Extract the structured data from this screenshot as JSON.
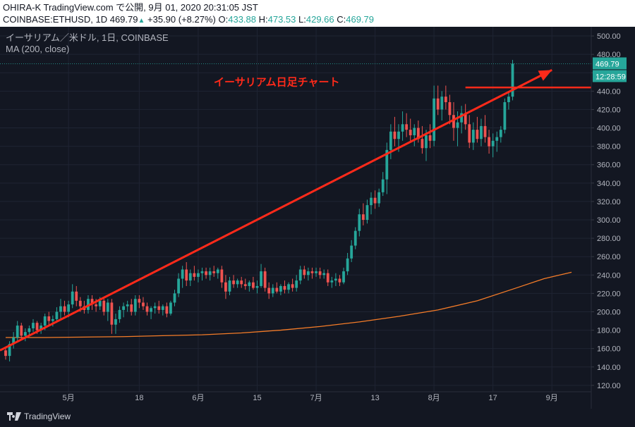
{
  "header": {
    "line1": "OHIRA-K TradingView.com で公開, 9月 01, 2020 20:31:05 JST",
    "symbol": "COINBASE:ETHUSD, 1D",
    "last": "469.79",
    "up_glyph": "▲",
    "change": "+35.90 (+8.27%)",
    "o_label": "O:",
    "o": "433.88",
    "h_label": "H:",
    "h": "473.53",
    "l_label": "L:",
    "l": "429.66",
    "c_label": "C:",
    "c": "469.79"
  },
  "legend": {
    "title": "イーサリアム／米ドル, 1日, COINBASE",
    "ma": "MA (200, close)"
  },
  "annotation": "イーサリアム日足チャート",
  "price_label": "469.79",
  "countdown_label": "12:28:59",
  "brand": "TradingView",
  "colors": {
    "background": "#131722",
    "up": "#26a69a",
    "down": "#ef5350",
    "ma": "#f57c28",
    "annotation": "#ff2a1a"
  },
  "chart_data": {
    "type": "candlestick",
    "x_tick_labels": [
      "5月",
      "18",
      "6月",
      "15",
      "7月",
      "13",
      "8月",
      "17",
      "9月"
    ],
    "y_tick_labels": [
      "120.00",
      "140.00",
      "160.00",
      "180.00",
      "200.00",
      "220.00",
      "240.00",
      "260.00",
      "280.00",
      "300.00",
      "320.00",
      "340.00",
      "360.00",
      "380.00",
      "400.00",
      "420.00",
      "440.00",
      "460.00",
      "480.00",
      "500.00"
    ],
    "ylim": [
      113,
      510
    ],
    "grid": true,
    "candles": [
      [
        158,
        162,
        148,
        152
      ],
      [
        152,
        168,
        146,
        165
      ],
      [
        165,
        178,
        160,
        172
      ],
      [
        172,
        190,
        168,
        185
      ],
      [
        185,
        188,
        170,
        174
      ],
      [
        174,
        182,
        168,
        178
      ],
      [
        178,
        185,
        174,
        182
      ],
      [
        182,
        192,
        178,
        188
      ],
      [
        188,
        190,
        176,
        180
      ],
      [
        180,
        188,
        176,
        185
      ],
      [
        185,
        198,
        180,
        195
      ],
      [
        195,
        200,
        186,
        190
      ],
      [
        190,
        196,
        184,
        192
      ],
      [
        192,
        205,
        188,
        200
      ],
      [
        200,
        214,
        192,
        206
      ],
      [
        206,
        212,
        196,
        200
      ],
      [
        200,
        212,
        194,
        208
      ],
      [
        208,
        230,
        204,
        222
      ],
      [
        222,
        228,
        206,
        212
      ],
      [
        212,
        216,
        200,
        206
      ],
      [
        206,
        212,
        198,
        202
      ],
      [
        202,
        218,
        198,
        214
      ],
      [
        214,
        218,
        202,
        208
      ],
      [
        208,
        214,
        200,
        206
      ],
      [
        206,
        216,
        202,
        212
      ],
      [
        212,
        214,
        196,
        200
      ],
      [
        200,
        214,
        190,
        210
      ],
      [
        210,
        214,
        176,
        186
      ],
      [
        186,
        198,
        176,
        192
      ],
      [
        192,
        206,
        188,
        202
      ],
      [
        202,
        210,
        194,
        206
      ],
      [
        206,
        212,
        200,
        208
      ],
      [
        208,
        214,
        196,
        200
      ],
      [
        200,
        218,
        196,
        214
      ],
      [
        214,
        218,
        204,
        210
      ],
      [
        210,
        216,
        202,
        206
      ],
      [
        206,
        210,
        196,
        200
      ],
      [
        200,
        206,
        192,
        204
      ],
      [
        204,
        210,
        198,
        206
      ],
      [
        206,
        212,
        198,
        202
      ],
      [
        202,
        208,
        196,
        206
      ],
      [
        206,
        210,
        194,
        198
      ],
      [
        198,
        212,
        196,
        210
      ],
      [
        210,
        224,
        206,
        220
      ],
      [
        220,
        242,
        216,
        236
      ],
      [
        236,
        250,
        226,
        246
      ],
      [
        246,
        254,
        228,
        234
      ],
      [
        234,
        246,
        228,
        242
      ],
      [
        242,
        250,
        234,
        238
      ],
      [
        238,
        246,
        232,
        242
      ],
      [
        242,
        248,
        234,
        244
      ],
      [
        244,
        248,
        236,
        240
      ],
      [
        240,
        248,
        234,
        244
      ],
      [
        244,
        250,
        238,
        242
      ],
      [
        242,
        248,
        236,
        246
      ],
      [
        246,
        250,
        226,
        232
      ],
      [
        232,
        240,
        214,
        222
      ],
      [
        222,
        238,
        218,
        234
      ],
      [
        234,
        240,
        226,
        230
      ],
      [
        230,
        236,
        226,
        234
      ],
      [
        234,
        238,
        226,
        230
      ],
      [
        230,
        236,
        224,
        228
      ],
      [
        228,
        234,
        222,
        232
      ],
      [
        232,
        238,
        224,
        226
      ],
      [
        226,
        234,
        220,
        228
      ],
      [
        228,
        252,
        226,
        244
      ],
      [
        244,
        248,
        222,
        226
      ],
      [
        226,
        232,
        214,
        220
      ],
      [
        220,
        230,
        216,
        226
      ],
      [
        226,
        232,
        220,
        222
      ],
      [
        222,
        230,
        218,
        228
      ],
      [
        228,
        234,
        220,
        224
      ],
      [
        224,
        232,
        220,
        230
      ],
      [
        230,
        236,
        222,
        226
      ],
      [
        226,
        240,
        222,
        234
      ],
      [
        234,
        250,
        230,
        246
      ],
      [
        246,
        250,
        236,
        240
      ],
      [
        240,
        248,
        234,
        244
      ],
      [
        244,
        248,
        236,
        242
      ],
      [
        242,
        248,
        238,
        244
      ],
      [
        244,
        248,
        236,
        240
      ],
      [
        240,
        246,
        236,
        242
      ],
      [
        242,
        246,
        228,
        232
      ],
      [
        232,
        238,
        226,
        234
      ],
      [
        234,
        242,
        228,
        236
      ],
      [
        236,
        240,
        228,
        232
      ],
      [
        232,
        248,
        230,
        244
      ],
      [
        244,
        264,
        240,
        258
      ],
      [
        258,
        278,
        254,
        272
      ],
      [
        272,
        292,
        268,
        288
      ],
      [
        288,
        312,
        282,
        306
      ],
      [
        306,
        318,
        294,
        300
      ],
      [
        300,
        322,
        296,
        316
      ],
      [
        316,
        330,
        306,
        324
      ],
      [
        324,
        332,
        312,
        318
      ],
      [
        318,
        334,
        314,
        330
      ],
      [
        330,
        352,
        326,
        344
      ],
      [
        344,
        384,
        328,
        376
      ],
      [
        376,
        404,
        366,
        396
      ],
      [
        396,
        412,
        380,
        388
      ],
      [
        388,
        404,
        374,
        396
      ],
      [
        396,
        418,
        386,
        404
      ],
      [
        404,
        416,
        390,
        398
      ],
      [
        398,
        410,
        384,
        392
      ],
      [
        392,
        404,
        380,
        400
      ],
      [
        400,
        408,
        384,
        388
      ],
      [
        388,
        402,
        372,
        378
      ],
      [
        378,
        398,
        364,
        392
      ],
      [
        392,
        404,
        378,
        386
      ],
      [
        386,
        446,
        380,
        432
      ],
      [
        432,
        446,
        414,
        420
      ],
      [
        420,
        440,
        408,
        434
      ],
      [
        434,
        446,
        420,
        428
      ],
      [
        428,
        436,
        404,
        414
      ],
      [
        414,
        428,
        386,
        400
      ],
      [
        400,
        418,
        380,
        406
      ],
      [
        406,
        424,
        394,
        416
      ],
      [
        416,
        426,
        398,
        404
      ],
      [
        404,
        414,
        378,
        384
      ],
      [
        384,
        406,
        376,
        398
      ],
      [
        398,
        412,
        384,
        388
      ],
      [
        388,
        410,
        380,
        402
      ],
      [
        402,
        414,
        384,
        390
      ],
      [
        390,
        398,
        372,
        380
      ],
      [
        380,
        394,
        368,
        386
      ],
      [
        386,
        396,
        374,
        390
      ],
      [
        390,
        402,
        384,
        398
      ],
      [
        398,
        432,
        394,
        428
      ],
      [
        428,
        440,
        420,
        434
      ],
      [
        434,
        474,
        430,
        470
      ]
    ],
    "ma200": [
      [
        0,
        172
      ],
      [
        10,
        172
      ],
      [
        20,
        172.5
      ],
      [
        30,
        173
      ],
      [
        40,
        174
      ],
      [
        50,
        175
      ],
      [
        60,
        177
      ],
      [
        70,
        180
      ],
      [
        80,
        184
      ],
      [
        90,
        189
      ],
      [
        100,
        195
      ],
      [
        110,
        202
      ],
      [
        120,
        212
      ],
      [
        130,
        226
      ],
      [
        137,
        236
      ],
      [
        141,
        240
      ],
      [
        144,
        243
      ]
    ]
  }
}
